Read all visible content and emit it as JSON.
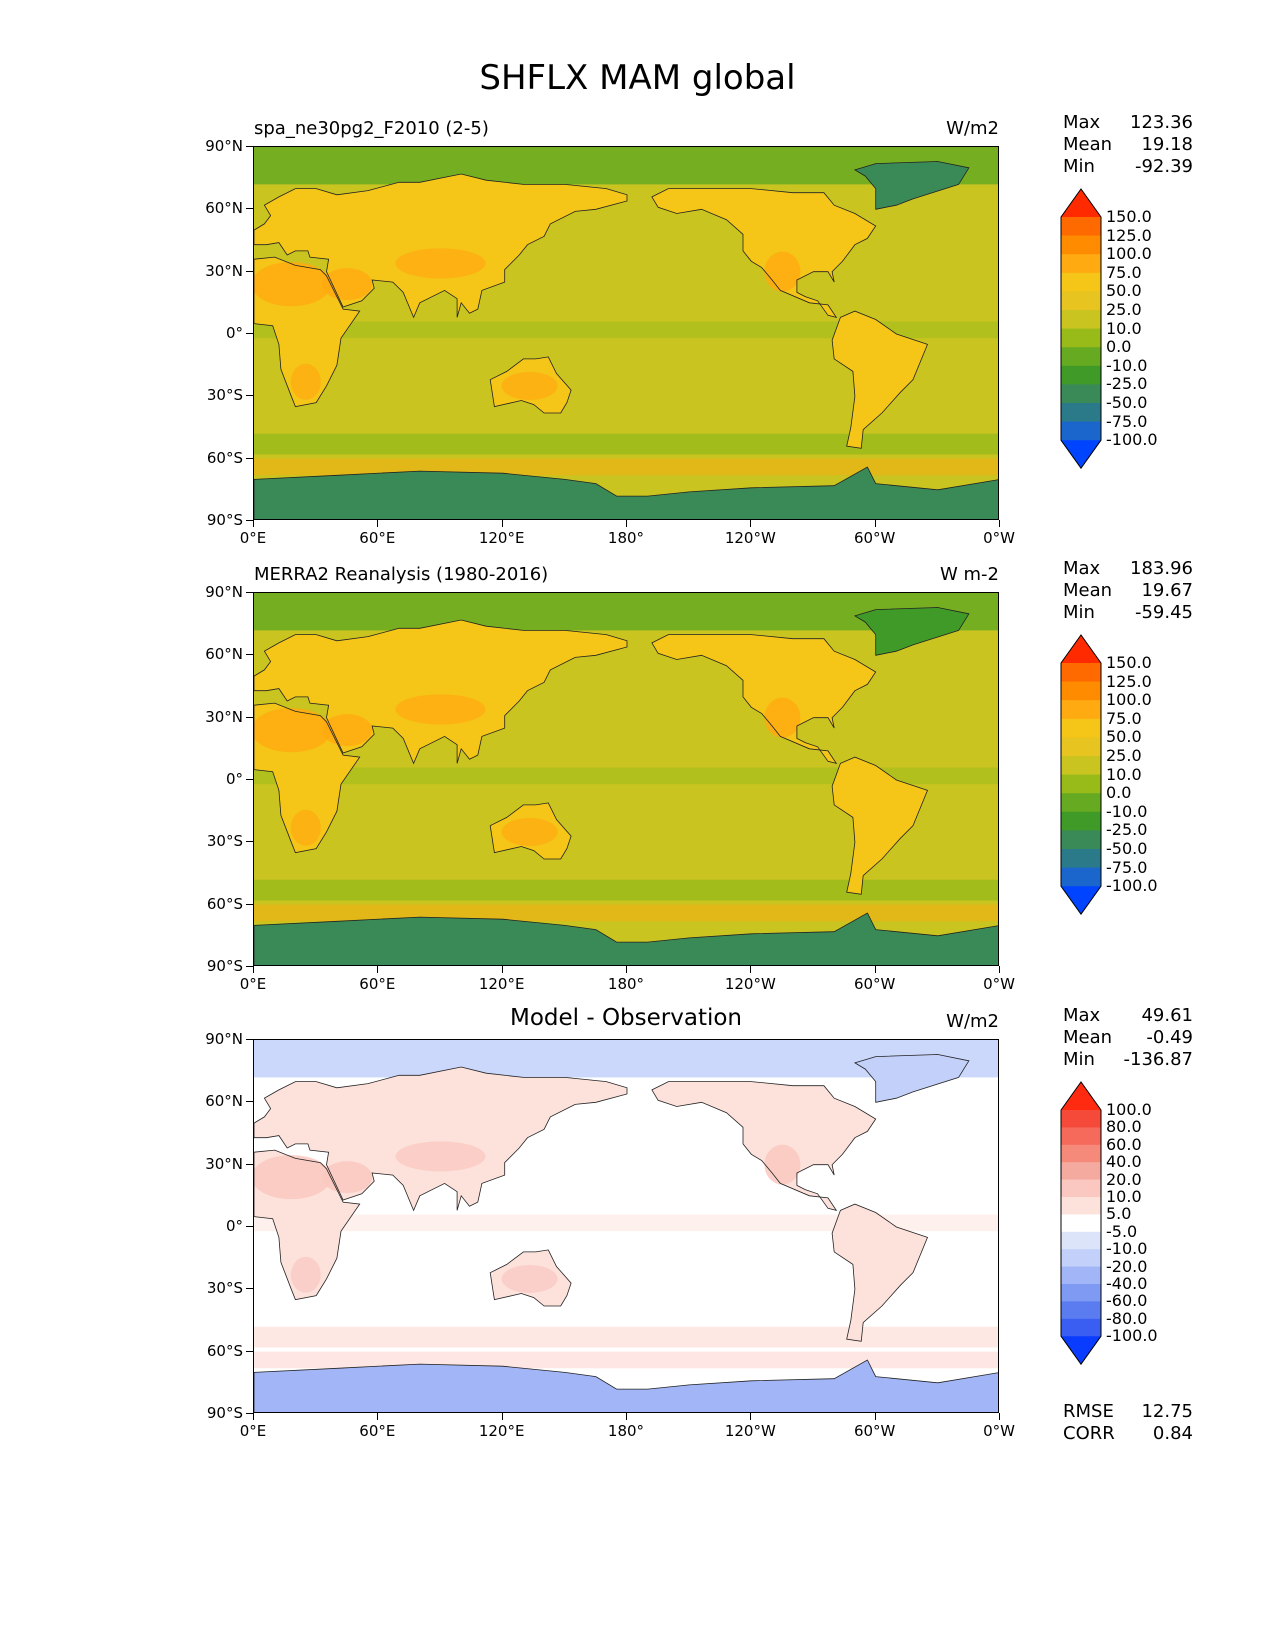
{
  "suptitle": "SHFLX MAM global",
  "lat_ticks": [
    "90°N",
    "60°N",
    "30°N",
    "0°",
    "30°S",
    "60°S",
    "90°S"
  ],
  "lon_ticks": [
    "0°E",
    "60°E",
    "120°E",
    "180°",
    "120°W",
    "60°W",
    "0°W"
  ],
  "panels": [
    {
      "title_left": "spa_ne30pg2_F2010 (2-5)",
      "title_center": "",
      "units": "W/m2",
      "stats": {
        "max_label": "Max",
        "max": "123.36",
        "mean_label": "Mean",
        "mean": "19.18",
        "min_label": "Min",
        "min": "-92.39"
      },
      "colorbar": {
        "levels": [
          "150.0",
          "125.0",
          "100.0",
          "75.0",
          "50.0",
          "25.0",
          "10.0",
          "0.0",
          "-10.0",
          "-25.0",
          "-50.0",
          "-75.0",
          "-100.0"
        ],
        "colors": [
          "#ff2a00",
          "#ff6a00",
          "#ff8c00",
          "#ffaa10",
          "#f5c518",
          "#e8c420",
          "#c9c420",
          "#99bb1a",
          "#66aa22",
          "#3f9a28",
          "#3a8a58",
          "#2a7a8a",
          "#1a66cc",
          "#0044ff"
        ]
      },
      "extra": null
    },
    {
      "title_left": "MERRA2 Reanalysis (1980-2016)",
      "title_center": "",
      "units": "W m-2",
      "stats": {
        "max_label": "Max",
        "max": "183.96",
        "mean_label": "Mean",
        "mean": "19.67",
        "min_label": "Min",
        "min": "-59.45"
      },
      "colorbar": {
        "levels": [
          "150.0",
          "125.0",
          "100.0",
          "75.0",
          "50.0",
          "25.0",
          "10.0",
          "0.0",
          "-10.0",
          "-25.0",
          "-50.0",
          "-75.0",
          "-100.0"
        ],
        "colors": [
          "#ff2a00",
          "#ff6a00",
          "#ff8c00",
          "#ffaa10",
          "#f5c518",
          "#e8c420",
          "#c9c420",
          "#99bb1a",
          "#66aa22",
          "#3f9a28",
          "#3a8a58",
          "#2a7a8a",
          "#1a66cc",
          "#0044ff"
        ]
      },
      "extra": null
    },
    {
      "title_left": "",
      "title_center": "Model - Observation",
      "units": "W/m2",
      "stats": {
        "max_label": "Max",
        "max": "49.61",
        "mean_label": "Mean",
        "mean": "-0.49",
        "min_label": "Min",
        "min": "-136.87"
      },
      "colorbar": {
        "levels": [
          "100.0",
          "80.0",
          "60.0",
          "40.0",
          "20.0",
          "10.0",
          "5.0",
          "-5.0",
          "-10.0",
          "-20.0",
          "-40.0",
          "-60.0",
          "-80.0",
          "-100.0"
        ],
        "colors": [
          "#ff2a10",
          "#f54a3a",
          "#f56a5a",
          "#f58a7a",
          "#f5aaa0",
          "#fac8c0",
          "#fde2dc",
          "#ffffff",
          "#dce4fa",
          "#c2d0fa",
          "#a2b6f7",
          "#7f9af2",
          "#5a7cf0",
          "#3b5ef2",
          "#0a3cff"
        ]
      },
      "extra": {
        "rmse_label": "RMSE",
        "rmse": "12.75",
        "corr_label": "CORR",
        "corr": "0.84"
      }
    }
  ]
}
